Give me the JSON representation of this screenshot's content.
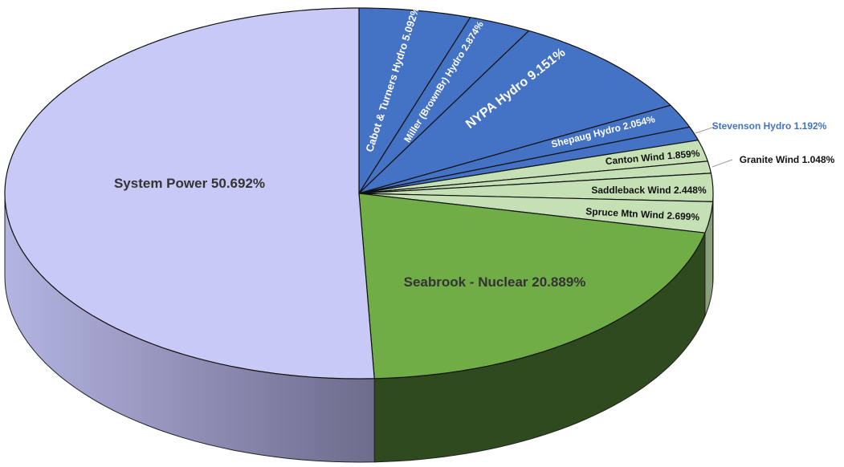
{
  "chart_data": {
    "type": "pie",
    "style": "3d",
    "start": "top",
    "direction": "clockwise",
    "slices": [
      {
        "label": "Cabot & Turners Hydro",
        "value": 5.092,
        "display": "Cabot & Turners Hydro 5.092%",
        "color": "#4472c4",
        "text_color": "#ffffff"
      },
      {
        "label": "Miller (BrownBr) Hydro",
        "value": 2.874,
        "display": "Miller (BrownBr) Hydro 2.874%",
        "color": "#4472c4",
        "text_color": "#ffffff"
      },
      {
        "label": "NYPA Hydro",
        "value": 9.151,
        "display": "NYPA Hydro 9.151%",
        "color": "#4472c4",
        "text_color": "#ffffff"
      },
      {
        "label": "Shepaug Hydro",
        "value": 2.054,
        "display": "Shepaug Hydro 2.054%",
        "color": "#4472c4",
        "text_color": "#ffffff"
      },
      {
        "label": "Stevenson Hydro",
        "value": 1.192,
        "display": "Stevenson Hydro 1.192%",
        "color": "#4472c4",
        "text_color": "#4472c4",
        "external": true
      },
      {
        "label": "Canton Wind",
        "value": 1.859,
        "display": "Canton Wind 1.859%",
        "color": "#c5e0b4",
        "text_color": "#111111"
      },
      {
        "label": "Granite Wind",
        "value": 1.048,
        "display": "Granite Wind 1.048%",
        "color": "#c5e0b4",
        "text_color": "#111111",
        "external": true
      },
      {
        "label": "Saddleback Wind",
        "value": 2.448,
        "display": "Saddleback Wind 2.448%",
        "color": "#c5e0b4",
        "text_color": "#111111"
      },
      {
        "label": "Spruce Mtn Wind",
        "value": 2.699,
        "display": "Spruce Mtn Wind 2.699%",
        "color": "#c5e0b4",
        "text_color": "#111111"
      },
      {
        "label": "Seabrook - Nuclear",
        "value": 20.889,
        "display": "Seabrook - Nuclear 20.889%",
        "color": "#70ad47",
        "text_color": "#333333"
      },
      {
        "label": "System Power",
        "value": 50.692,
        "display": "System Power 50.692%",
        "color": "#c9c9f8",
        "text_color": "#333333"
      }
    ]
  }
}
